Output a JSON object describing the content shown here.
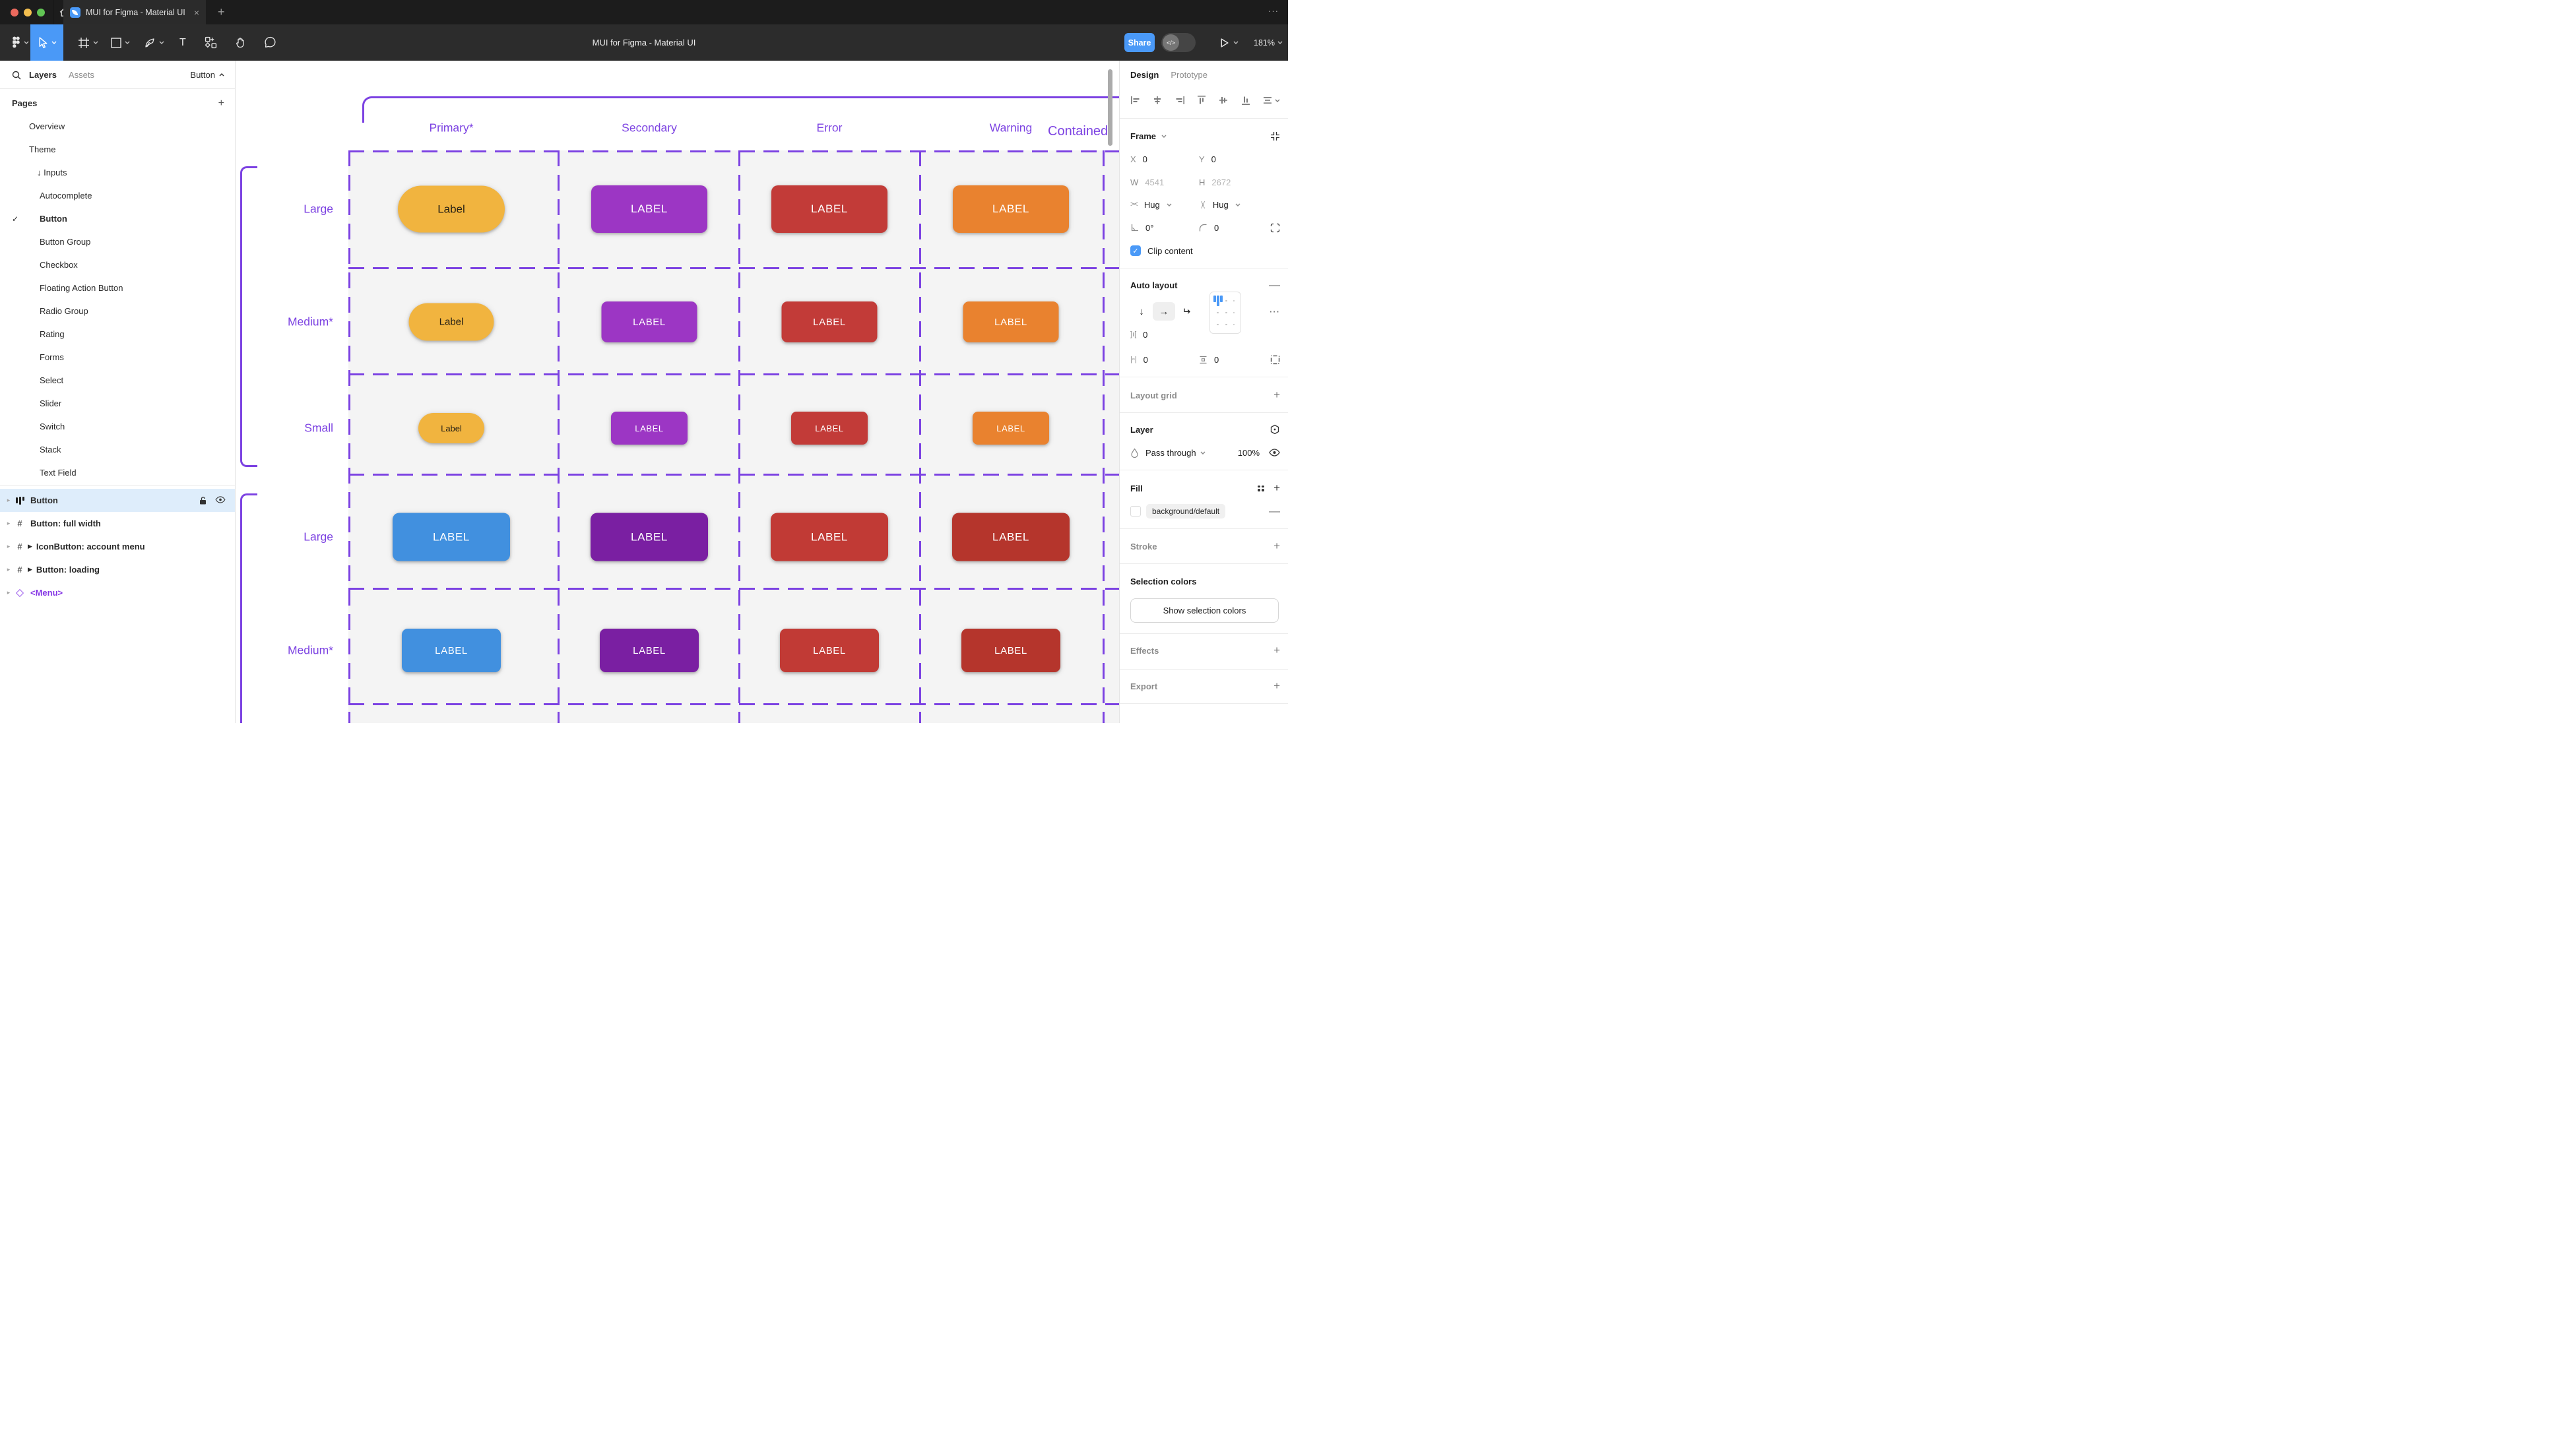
{
  "titlebar": {
    "tab_title": "MUI for Figma - Material UI",
    "close_label": "×",
    "new_tab_label": "+",
    "window_more_label": "···"
  },
  "toolbar": {
    "doc_title": "MUI for Figma - Material UI",
    "share_label": "Share",
    "dev_mode_label": "</>",
    "zoom_level": "181%",
    "tools": [
      "figma-menu",
      "move-tool",
      "frame-tool",
      "rectangle-tool",
      "pen-tool",
      "text-tool",
      "components-tool",
      "hand-tool",
      "comment-tool"
    ]
  },
  "left_sidebar": {
    "tab_layers": "Layers",
    "tab_assets": "Assets",
    "page_selector": "Button",
    "pages_header": "Pages",
    "add_page_label": "+",
    "pages": [
      {
        "label": "Overview",
        "indent": 44
      },
      {
        "label": "Theme",
        "indent": 44
      },
      {
        "label": "Inputs",
        "indent": 56,
        "arrow": "↓"
      },
      {
        "label": "Autocomplete",
        "indent": 60
      },
      {
        "label": "Button",
        "indent": 60,
        "selected": true,
        "check": "✓"
      },
      {
        "label": "Button Group",
        "indent": 60
      },
      {
        "label": "Checkbox",
        "indent": 60
      },
      {
        "label": "Floating Action Button",
        "indent": 60
      },
      {
        "label": "Radio Group",
        "indent": 60
      },
      {
        "label": "Rating",
        "indent": 60
      },
      {
        "label": "Forms",
        "indent": 60
      },
      {
        "label": "Select",
        "indent": 60
      },
      {
        "label": "Slider",
        "indent": 60
      },
      {
        "label": "Switch",
        "indent": 60
      },
      {
        "label": "Stack",
        "indent": 60
      },
      {
        "label": "Text Field",
        "indent": 60
      }
    ],
    "layers": [
      {
        "label": "Button",
        "icon": "auto-layout",
        "selected": true
      },
      {
        "label": "Button: full width",
        "icon": "frame"
      },
      {
        "label": "IconButton: account menu",
        "icon": "frame",
        "play": "▶"
      },
      {
        "label": "Button: loading",
        "icon": "frame",
        "play": "▶"
      },
      {
        "label": "<Menu>",
        "icon": "component",
        "purple": true
      }
    ]
  },
  "canvas": {
    "frame_title": "Contained",
    "columns": [
      "Primary*",
      "Secondary",
      "Error",
      "Warning"
    ],
    "palette": {
      "yellow": "#F1B43F",
      "yellowText": "#262015",
      "purple": "#9C36C4",
      "red": "#C23B38",
      "orange": "#E9822F",
      "blue": "#4190DF",
      "deepPurple": "#7A1FA2",
      "red2": "#C13A35",
      "brick": "#B5352C",
      "annotation": "#7C42E2"
    },
    "rows": [
      {
        "label": "Large",
        "cells": [
          {
            "label": "Label",
            "color": "yellow",
            "pill": true,
            "dark": true
          },
          {
            "label": "LABEL",
            "color": "purple"
          },
          {
            "label": "LABEL",
            "color": "red"
          },
          {
            "label": "LABEL",
            "color": "orange"
          }
        ]
      },
      {
        "label": "Medium*",
        "cells": [
          {
            "label": "Label",
            "color": "yellow",
            "pill": true,
            "dark": true
          },
          {
            "label": "LABEL",
            "color": "purple"
          },
          {
            "label": "LABEL",
            "color": "red"
          },
          {
            "label": "LABEL",
            "color": "orange"
          }
        ]
      },
      {
        "label": "Small",
        "cells": [
          {
            "label": "Label",
            "color": "yellow",
            "pill": true,
            "dark": true
          },
          {
            "label": "LABEL",
            "color": "purple"
          },
          {
            "label": "LABEL",
            "color": "red"
          },
          {
            "label": "LABEL",
            "color": "orange"
          }
        ]
      },
      {
        "label": "Large",
        "cells": [
          {
            "label": "LABEL",
            "color": "blue"
          },
          {
            "label": "LABEL",
            "color": "deepPurple"
          },
          {
            "label": "LABEL",
            "color": "red2"
          },
          {
            "label": "LABEL",
            "color": "brick"
          }
        ]
      },
      {
        "label": "Medium*",
        "cells": [
          {
            "label": "LABEL",
            "color": "blue"
          },
          {
            "label": "LABEL",
            "color": "deepPurple"
          },
          {
            "label": "LABEL",
            "color": "red2"
          },
          {
            "label": "LABEL",
            "color": "brick"
          }
        ]
      }
    ]
  },
  "right_panel": {
    "tab_design": "Design",
    "tab_prototype": "Prototype",
    "frame": {
      "title": "Frame",
      "x_label": "X",
      "x": "0",
      "y_label": "Y",
      "y": "0",
      "w_label": "W",
      "w": "4541",
      "h_label": "H",
      "h": "2672",
      "h_resize": "Hug",
      "v_resize": "Hug",
      "rotation": "0°",
      "corner_radius": "0",
      "clip_label": "Clip content"
    },
    "auto_layout": {
      "title": "Auto layout",
      "gap": "0",
      "pad_h": "0",
      "pad_v": "0",
      "remove_label": "—",
      "more_label": "···"
    },
    "layout_grid": {
      "title": "Layout grid",
      "add_label": "+"
    },
    "layer": {
      "title": "Layer",
      "blend_mode": "Pass through",
      "opacity": "100%"
    },
    "fill": {
      "title": "Fill",
      "token": "background/default",
      "add_label": "+",
      "remove_label": "—"
    },
    "stroke": {
      "title": "Stroke",
      "add_label": "+"
    },
    "selection_colors": {
      "title": "Selection colors",
      "button_label": "Show selection colors"
    },
    "effects": {
      "title": "Effects",
      "add_label": "+"
    },
    "export": {
      "title": "Export",
      "add_label": "+"
    }
  }
}
